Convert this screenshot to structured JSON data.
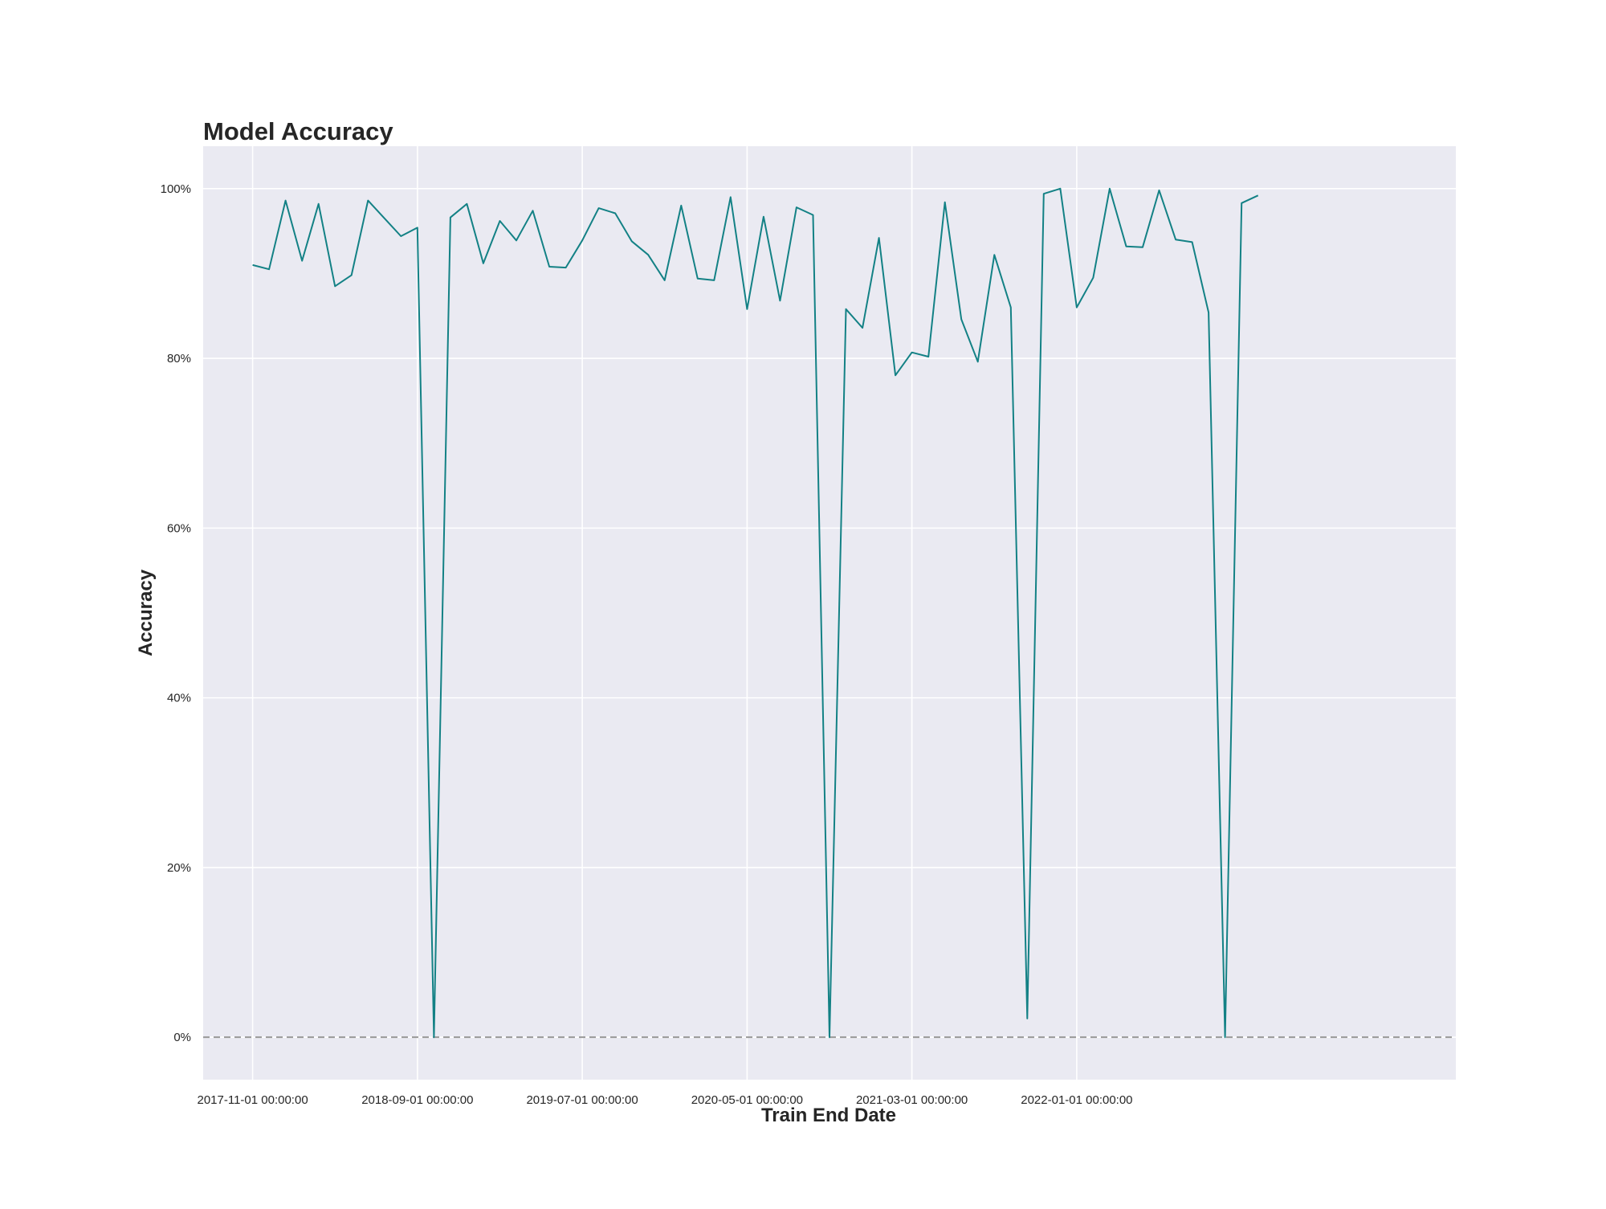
{
  "chart_data": {
    "type": "line",
    "title": "Model Accuracy",
    "xlabel": "Train End Date",
    "ylabel": "Accuracy",
    "x_tick_labels": [
      "2017-11-01 00:00:00",
      "2018-09-01 00:00:00",
      "2019-07-01 00:00:00",
      "2020-05-01 00:00:00",
      "2021-03-01 00:00:00",
      "2022-01-01 00:00:00"
    ],
    "y_tick_labels": [
      "0%",
      "20%",
      "40%",
      "60%",
      "80%",
      "100%"
    ],
    "y_ticks": [
      0,
      20,
      40,
      60,
      80,
      100
    ],
    "ylim": [
      -5,
      105
    ],
    "x_unit": "months",
    "x_range": [
      "2017-08-01",
      "2023-12-01"
    ],
    "grid": true,
    "reference_line": {
      "y": 0,
      "style": "dashed",
      "color": "#999999"
    },
    "colors": {
      "line": "#138185",
      "plot_bg": "#eaeaf2",
      "grid": "#ffffff"
    },
    "series": [
      {
        "x": [
          "2017-11-01",
          "2017-12-01",
          "2018-01-01",
          "2018-02-01",
          "2018-03-01",
          "2018-04-01",
          "2018-05-01",
          "2018-06-01",
          "2018-07-01",
          "2018-08-01",
          "2018-09-01",
          "2018-10-01",
          "2018-11-01",
          "2018-12-01",
          "2019-01-01",
          "2019-02-01",
          "2019-03-01",
          "2019-04-01",
          "2019-05-01",
          "2019-06-01",
          "2019-07-01",
          "2019-08-01",
          "2019-09-01",
          "2019-10-01",
          "2019-11-01",
          "2019-12-01",
          "2020-01-01",
          "2020-02-01",
          "2020-03-01",
          "2020-04-01",
          "2020-05-01",
          "2020-06-01",
          "2020-07-01",
          "2020-08-01",
          "2020-09-01",
          "2020-10-01",
          "2020-11-01",
          "2020-12-01",
          "2021-01-01",
          "2021-02-01",
          "2021-03-01",
          "2021-04-01",
          "2021-05-01",
          "2021-06-01",
          "2021-07-01",
          "2021-08-01",
          "2021-09-01",
          "2021-10-01",
          "2021-11-01",
          "2021-12-01",
          "2022-01-01",
          "2022-02-01",
          "2022-03-01",
          "2022-04-01",
          "2022-05-01",
          "2022-06-01",
          "2022-07-01",
          "2022-08-01",
          "2022-09-01",
          "2022-10-01",
          "2022-11-01",
          "2022-12-01"
        ],
        "y": [
          91.0,
          90.5,
          98.6,
          91.5,
          98.2,
          88.5,
          89.8,
          98.6,
          96.5,
          94.4,
          95.4,
          0.0,
          96.6,
          98.2,
          91.2,
          96.2,
          93.9,
          97.4,
          90.8,
          90.7,
          93.9,
          97.7,
          97.1,
          93.8,
          92.2,
          89.2,
          98.0,
          89.4,
          89.2,
          99.0,
          85.8,
          96.7,
          86.8,
          97.8,
          96.9,
          0.0,
          85.8,
          83.6,
          94.2,
          78.0,
          80.7,
          80.2,
          98.4,
          84.6,
          79.6,
          92.2,
          86.0,
          2.2,
          99.4,
          100.0,
          86.0,
          89.5,
          100.0,
          93.2,
          93.1,
          99.8,
          94.0,
          93.7,
          85.4,
          0.0,
          98.3,
          99.2
        ]
      }
    ]
  }
}
